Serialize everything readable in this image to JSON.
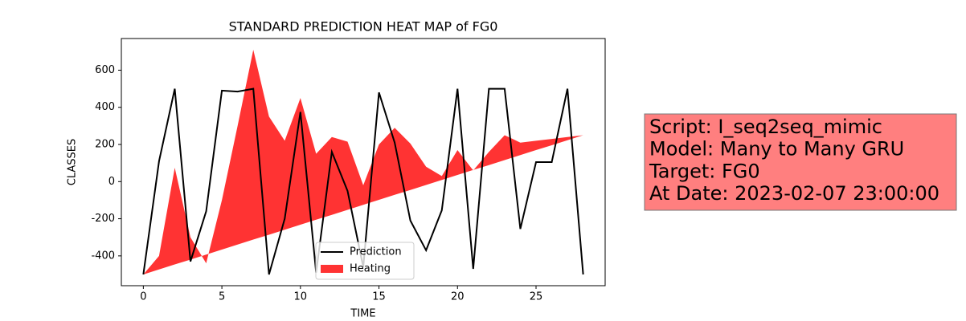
{
  "chart_data": {
    "type": "line_area",
    "title": "STANDARD PREDICTION HEAT MAP of FG0",
    "xlabel": "TIME",
    "ylabel": "CLASSES",
    "x": [
      0,
      1,
      2,
      3,
      4,
      5,
      6,
      7,
      8,
      9,
      10,
      11,
      12,
      13,
      14,
      15,
      16,
      17,
      18,
      19,
      20,
      21,
      22,
      23,
      24,
      25,
      26,
      27,
      28
    ],
    "series": [
      {
        "name": "Prediction",
        "color": "#000000",
        "kind": "line",
        "values": [
          -500,
          110,
          500,
          -430,
          -160,
          490,
          485,
          500,
          -500,
          -200,
          375,
          -490,
          160,
          -50,
          -460,
          480,
          210,
          -210,
          -370,
          -155,
          500,
          -470,
          500,
          500,
          -255,
          105,
          105,
          500,
          -500
        ]
      },
      {
        "name": "Heating",
        "color": "#ff0000",
        "kind": "area",
        "values": [
          -500,
          -400,
          75,
          -300,
          -440,
          -100,
          300,
          710,
          350,
          220,
          450,
          150,
          240,
          215,
          -20,
          200,
          290,
          205,
          80,
          30,
          170,
          60,
          160,
          250,
          210,
          220,
          230,
          240,
          250
        ],
        "baseline": [
          -500,
          -473,
          -446,
          -420,
          -393,
          -366,
          -339,
          -312,
          -286,
          -259,
          -232,
          -205,
          -179,
          -152,
          -125,
          -98,
          -71,
          -45,
          -18,
          9,
          36,
          63,
          89,
          116,
          143,
          170,
          196,
          223,
          250
        ]
      }
    ],
    "xlim": [
      -1.4,
      29.4
    ],
    "ylim": [
      -560.5,
      770.5
    ],
    "xticks": [
      0,
      5,
      10,
      15,
      20,
      25
    ],
    "yticks": [
      -400,
      -200,
      0,
      200,
      400,
      600
    ],
    "legend": "lower center",
    "annotation": [
      "Script: I_seq2seq_mimic",
      "Model: Many to Many GRU",
      "Target: FG0",
      "At Date: 2023-02-07 23:00:00"
    ]
  }
}
